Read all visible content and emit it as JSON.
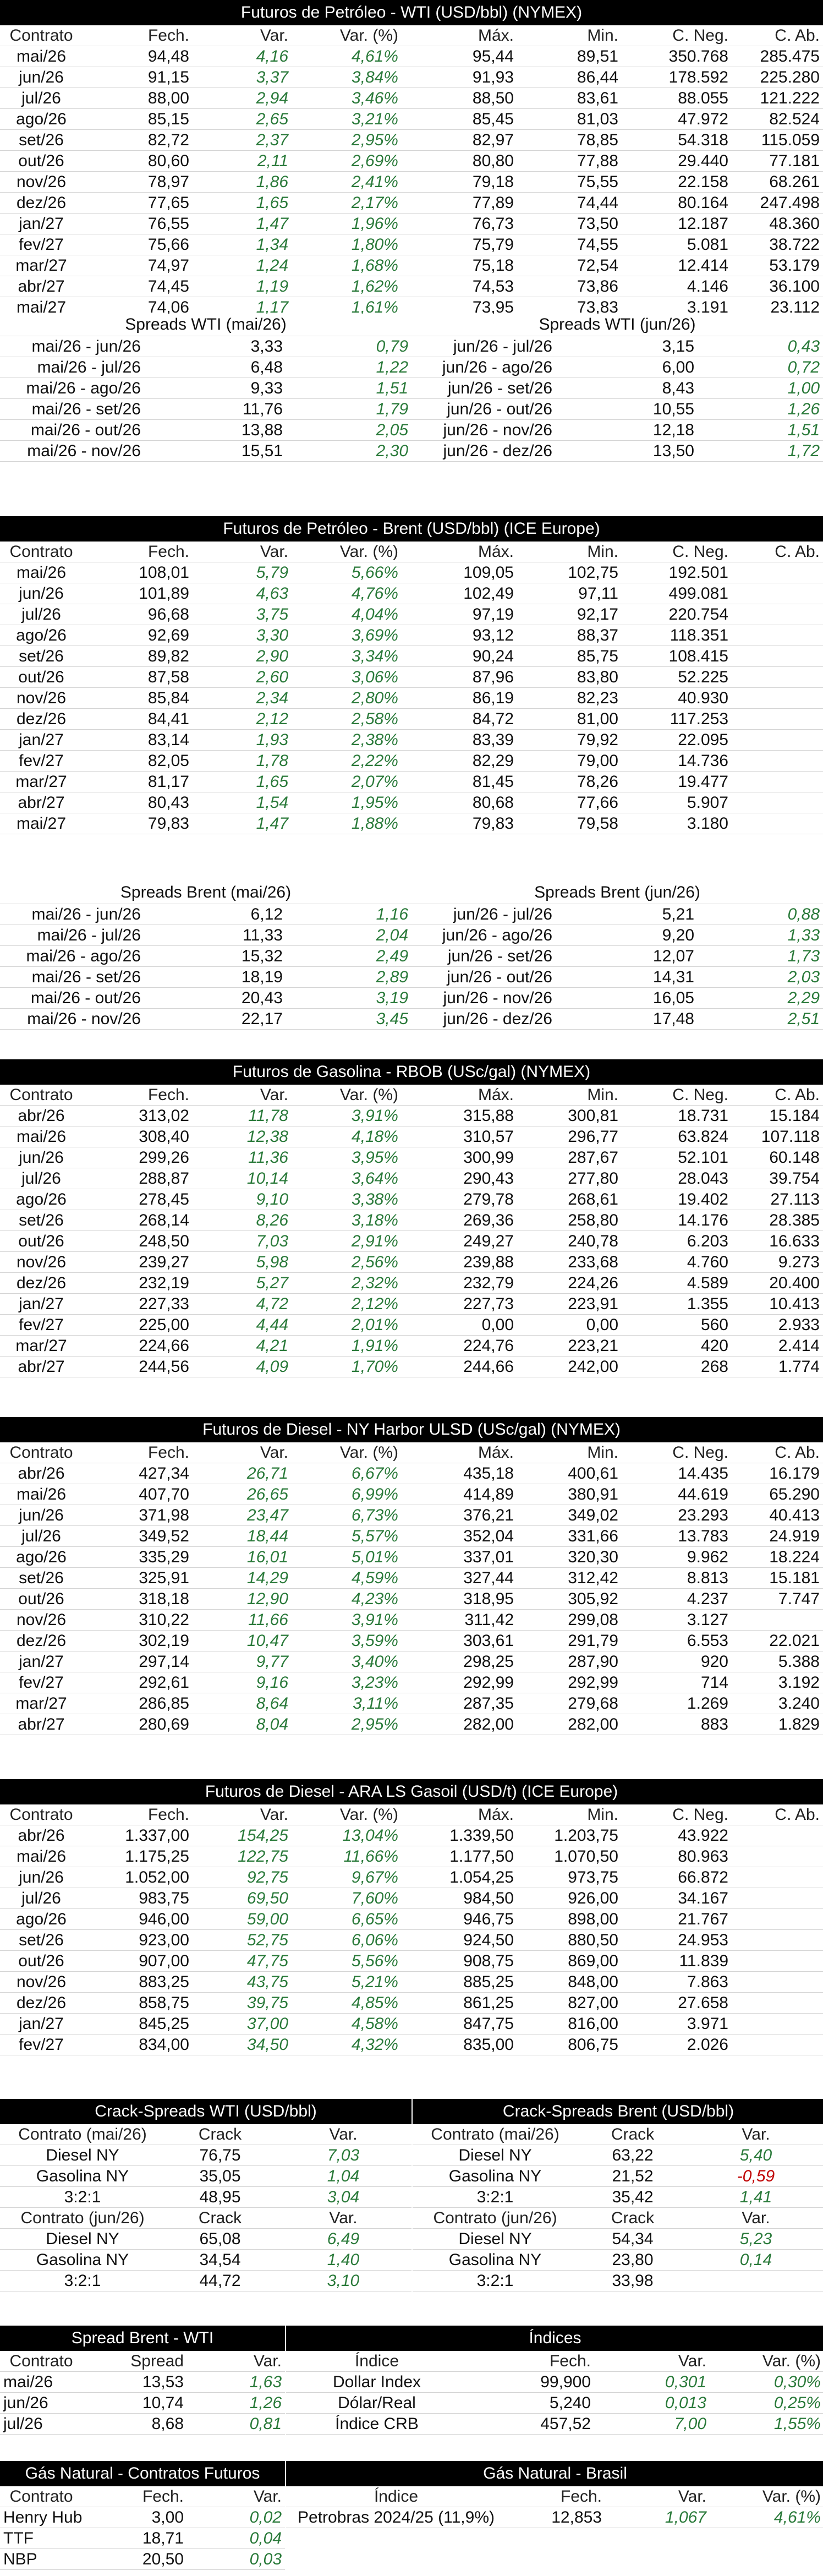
{
  "wti": {
    "title": "Futuros de Petróleo - WTI (USD/bbl) (NYMEX)",
    "headers": [
      "Contrato",
      "Fech.",
      "Var.",
      "Var. (%)",
      "Máx.",
      "Min.",
      "C. Neg.",
      "C. Ab."
    ],
    "rows": [
      [
        "mai/26",
        "94,48",
        "4,16",
        "4,61%",
        "95,44",
        "89,51",
        "350.768",
        "285.475"
      ],
      [
        "jun/26",
        "91,15",
        "3,37",
        "3,84%",
        "91,93",
        "86,44",
        "178.592",
        "225.280"
      ],
      [
        "jul/26",
        "88,00",
        "2,94",
        "3,46%",
        "88,50",
        "83,61",
        "88.055",
        "121.222"
      ],
      [
        "ago/26",
        "85,15",
        "2,65",
        "3,21%",
        "85,45",
        "81,03",
        "47.972",
        "82.524"
      ],
      [
        "set/26",
        "82,72",
        "2,37",
        "2,95%",
        "82,97",
        "78,85",
        "54.318",
        "115.059"
      ],
      [
        "out/26",
        "80,60",
        "2,11",
        "2,69%",
        "80,80",
        "77,88",
        "29.440",
        "77.181"
      ],
      [
        "nov/26",
        "78,97",
        "1,86",
        "2,41%",
        "79,18",
        "75,55",
        "22.158",
        "68.261"
      ],
      [
        "dez/26",
        "77,65",
        "1,65",
        "2,17%",
        "77,89",
        "74,44",
        "80.164",
        "247.498"
      ],
      [
        "jan/27",
        "76,55",
        "1,47",
        "1,96%",
        "76,73",
        "73,50",
        "12.187",
        "48.360"
      ],
      [
        "fev/27",
        "75,66",
        "1,34",
        "1,80%",
        "75,79",
        "74,55",
        "5.081",
        "38.722"
      ],
      [
        "mar/27",
        "74,97",
        "1,24",
        "1,68%",
        "75,18",
        "72,54",
        "12.414",
        "53.179"
      ],
      [
        "abr/27",
        "74,45",
        "1,19",
        "1,62%",
        "74,53",
        "73,86",
        "4.146",
        "36.100"
      ],
      [
        "mai/27",
        "74,06",
        "1,17",
        "1,61%",
        "73,95",
        "73,83",
        "3.191",
        "23.112"
      ]
    ]
  },
  "spreads_wti": {
    "left_title": "Spreads WTI (mai/26)",
    "right_title": "Spreads WTI (jun/26)",
    "left": [
      [
        "mai/26 - jun/26",
        "3,33",
        "0,79"
      ],
      [
        "mai/26 - jul/26",
        "6,48",
        "1,22"
      ],
      [
        "mai/26 - ago/26",
        "9,33",
        "1,51"
      ],
      [
        "mai/26 - set/26",
        "11,76",
        "1,79"
      ],
      [
        "mai/26 - out/26",
        "13,88",
        "2,05"
      ],
      [
        "mai/26 - nov/26",
        "15,51",
        "2,30"
      ]
    ],
    "right": [
      [
        "jun/26 - jul/26",
        "3,15",
        "0,43"
      ],
      [
        "jun/26 - ago/26",
        "6,00",
        "0,72"
      ],
      [
        "jun/26 - set/26",
        "8,43",
        "1,00"
      ],
      [
        "jun/26 - out/26",
        "10,55",
        "1,26"
      ],
      [
        "jun/26 - nov/26",
        "12,18",
        "1,51"
      ],
      [
        "jun/26 - dez/26",
        "13,50",
        "1,72"
      ]
    ]
  },
  "brent": {
    "title": "Futuros de Petróleo - Brent (USD/bbl) (ICE Europe)",
    "headers": [
      "Contrato",
      "Fech.",
      "Var.",
      "Var. (%)",
      "Máx.",
      "Min.",
      "C. Neg.",
      "C. Ab."
    ],
    "rows": [
      [
        "mai/26",
        "108,01",
        "5,79",
        "5,66%",
        "109,05",
        "102,75",
        "192.501",
        ""
      ],
      [
        "jun/26",
        "101,89",
        "4,63",
        "4,76%",
        "102,49",
        "97,11",
        "499.081",
        ""
      ],
      [
        "jul/26",
        "96,68",
        "3,75",
        "4,04%",
        "97,19",
        "92,17",
        "220.754",
        ""
      ],
      [
        "ago/26",
        "92,69",
        "3,30",
        "3,69%",
        "93,12",
        "88,37",
        "118.351",
        ""
      ],
      [
        "set/26",
        "89,82",
        "2,90",
        "3,34%",
        "90,24",
        "85,75",
        "108.415",
        ""
      ],
      [
        "out/26",
        "87,58",
        "2,60",
        "3,06%",
        "87,96",
        "83,80",
        "52.225",
        ""
      ],
      [
        "nov/26",
        "85,84",
        "2,34",
        "2,80%",
        "86,19",
        "82,23",
        "40.930",
        ""
      ],
      [
        "dez/26",
        "84,41",
        "2,12",
        "2,58%",
        "84,72",
        "81,00",
        "117.253",
        ""
      ],
      [
        "jan/27",
        "83,14",
        "1,93",
        "2,38%",
        "83,39",
        "79,92",
        "22.095",
        ""
      ],
      [
        "fev/27",
        "82,05",
        "1,78",
        "2,22%",
        "82,29",
        "79,00",
        "14.736",
        ""
      ],
      [
        "mar/27",
        "81,17",
        "1,65",
        "2,07%",
        "81,45",
        "78,26",
        "19.477",
        ""
      ],
      [
        "abr/27",
        "80,43",
        "1,54",
        "1,95%",
        "80,68",
        "77,66",
        "5.907",
        ""
      ],
      [
        "mai/27",
        "79,83",
        "1,47",
        "1,88%",
        "79,83",
        "79,58",
        "3.180",
        ""
      ]
    ]
  },
  "spreads_brent": {
    "left_title": "Spreads Brent (mai/26)",
    "right_title": "Spreads Brent (jun/26)",
    "left": [
      [
        "mai/26 - jun/26",
        "6,12",
        "1,16"
      ],
      [
        "mai/26 - jul/26",
        "11,33",
        "2,04"
      ],
      [
        "mai/26 - ago/26",
        "15,32",
        "2,49"
      ],
      [
        "mai/26 - set/26",
        "18,19",
        "2,89"
      ],
      [
        "mai/26 - out/26",
        "20,43",
        "3,19"
      ],
      [
        "mai/26 - nov/26",
        "22,17",
        "3,45"
      ]
    ],
    "right": [
      [
        "jun/26 - jul/26",
        "5,21",
        "0,88"
      ],
      [
        "jun/26 - ago/26",
        "9,20",
        "1,33"
      ],
      [
        "jun/26 - set/26",
        "12,07",
        "1,73"
      ],
      [
        "jun/26 - out/26",
        "14,31",
        "2,03"
      ],
      [
        "jun/26 - nov/26",
        "16,05",
        "2,29"
      ],
      [
        "jun/26 - dez/26",
        "17,48",
        "2,51"
      ]
    ]
  },
  "rbob": {
    "title": "Futuros de Gasolina - RBOB (USc/gal) (NYMEX)",
    "headers": [
      "Contrato",
      "Fech.",
      "Var.",
      "Var. (%)",
      "Máx.",
      "Min.",
      "C. Neg.",
      "C. Ab."
    ],
    "rows": [
      [
        "abr/26",
        "313,02",
        "11,78",
        "3,91%",
        "315,88",
        "300,81",
        "18.731",
        "15.184"
      ],
      [
        "mai/26",
        "308,40",
        "12,38",
        "4,18%",
        "310,57",
        "296,77",
        "63.824",
        "107.118"
      ],
      [
        "jun/26",
        "299,26",
        "11,36",
        "3,95%",
        "300,99",
        "287,67",
        "52.101",
        "60.148"
      ],
      [
        "jul/26",
        "288,87",
        "10,14",
        "3,64%",
        "290,43",
        "277,80",
        "28.043",
        "39.754"
      ],
      [
        "ago/26",
        "278,45",
        "9,10",
        "3,38%",
        "279,78",
        "268,61",
        "19.402",
        "27.113"
      ],
      [
        "set/26",
        "268,14",
        "8,26",
        "3,18%",
        "269,36",
        "258,80",
        "14.176",
        "28.385"
      ],
      [
        "out/26",
        "248,50",
        "7,03",
        "2,91%",
        "249,27",
        "240,78",
        "6.203",
        "16.633"
      ],
      [
        "nov/26",
        "239,27",
        "5,98",
        "2,56%",
        "239,88",
        "233,68",
        "4.760",
        "9.273"
      ],
      [
        "dez/26",
        "232,19",
        "5,27",
        "2,32%",
        "232,79",
        "224,26",
        "4.589",
        "20.400"
      ],
      [
        "jan/27",
        "227,33",
        "4,72",
        "2,12%",
        "227,73",
        "223,91",
        "1.355",
        "10.413"
      ],
      [
        "fev/27",
        "225,00",
        "4,44",
        "2,01%",
        "0,00",
        "0,00",
        "560",
        "2.933"
      ],
      [
        "mar/27",
        "224,66",
        "4,21",
        "1,91%",
        "224,76",
        "223,21",
        "420",
        "2.414"
      ],
      [
        "abr/27",
        "244,56",
        "4,09",
        "1,70%",
        "244,66",
        "242,00",
        "268",
        "1.774"
      ]
    ]
  },
  "ulsd": {
    "title": "Futuros de Diesel - NY Harbor ULSD (USc/gal) (NYMEX)",
    "headers": [
      "Contrato",
      "Fech.",
      "Var.",
      "Var. (%)",
      "Máx.",
      "Min.",
      "C. Neg.",
      "C. Ab."
    ],
    "rows": [
      [
        "abr/26",
        "427,34",
        "26,71",
        "6,67%",
        "435,18",
        "400,61",
        "14.435",
        "16.179"
      ],
      [
        "mai/26",
        "407,70",
        "26,65",
        "6,99%",
        "414,89",
        "380,91",
        "44.619",
        "65.290"
      ],
      [
        "jun/26",
        "371,98",
        "23,47",
        "6,73%",
        "376,21",
        "349,02",
        "23.293",
        "40.413"
      ],
      [
        "jul/26",
        "349,52",
        "18,44",
        "5,57%",
        "352,04",
        "331,66",
        "13.783",
        "24.919"
      ],
      [
        "ago/26",
        "335,29",
        "16,01",
        "5,01%",
        "337,01",
        "320,30",
        "9.962",
        "18.224"
      ],
      [
        "set/26",
        "325,91",
        "14,29",
        "4,59%",
        "327,44",
        "312,42",
        "8.813",
        "15.181"
      ],
      [
        "out/26",
        "318,18",
        "12,90",
        "4,23%",
        "318,95",
        "305,92",
        "4.237",
        "7.747"
      ],
      [
        "nov/26",
        "310,22",
        "11,66",
        "3,91%",
        "311,42",
        "299,08",
        "3.127",
        ""
      ],
      [
        "dez/26",
        "302,19",
        "10,47",
        "3,59%",
        "303,61",
        "291,79",
        "6.553",
        "22.021"
      ],
      [
        "jan/27",
        "297,14",
        "9,77",
        "3,40%",
        "298,25",
        "287,90",
        "920",
        "5.388"
      ],
      [
        "fev/27",
        "292,61",
        "9,16",
        "3,23%",
        "292,99",
        "292,99",
        "714",
        "3.192"
      ],
      [
        "mar/27",
        "286,85",
        "8,64",
        "3,11%",
        "287,35",
        "279,68",
        "1.269",
        "3.240"
      ],
      [
        "abr/27",
        "280,69",
        "8,04",
        "2,95%",
        "282,00",
        "282,00",
        "883",
        "1.829"
      ]
    ]
  },
  "gasoil": {
    "title": "Futuros de Diesel - ARA LS Gasoil (USD/t) (ICE Europe)",
    "headers": [
      "Contrato",
      "Fech.",
      "Var.",
      "Var. (%)",
      "Máx.",
      "Min.",
      "C. Neg.",
      "C. Ab."
    ],
    "rows": [
      [
        "abr/26",
        "1.337,00",
        "154,25",
        "13,04%",
        "1.339,50",
        "1.203,75",
        "43.922",
        ""
      ],
      [
        "mai/26",
        "1.175,25",
        "122,75",
        "11,66%",
        "1.177,50",
        "1.070,50",
        "80.963",
        ""
      ],
      [
        "jun/26",
        "1.052,00",
        "92,75",
        "9,67%",
        "1.054,25",
        "973,75",
        "66.872",
        ""
      ],
      [
        "jul/26",
        "983,75",
        "69,50",
        "7,60%",
        "984,50",
        "926,00",
        "34.167",
        ""
      ],
      [
        "ago/26",
        "946,00",
        "59,00",
        "6,65%",
        "946,75",
        "898,00",
        "21.767",
        ""
      ],
      [
        "set/26",
        "923,00",
        "52,75",
        "6,06%",
        "924,50",
        "880,50",
        "24.953",
        ""
      ],
      [
        "out/26",
        "907,00",
        "47,75",
        "5,56%",
        "908,75",
        "869,00",
        "11.839",
        ""
      ],
      [
        "nov/26",
        "883,25",
        "43,75",
        "5,21%",
        "885,25",
        "848,00",
        "7.863",
        ""
      ],
      [
        "dez/26",
        "858,75",
        "39,75",
        "4,85%",
        "861,25",
        "827,00",
        "27.658",
        ""
      ],
      [
        "jan/27",
        "845,25",
        "37,00",
        "4,58%",
        "847,75",
        "816,00",
        "3.971",
        ""
      ],
      [
        "fev/27",
        "834,00",
        "34,50",
        "4,32%",
        "835,00",
        "806,75",
        "2.026",
        ""
      ]
    ]
  },
  "crack_wti": {
    "title": "Crack-Spreads WTI (USD/bbl)",
    "blocks": [
      {
        "headers": [
          "Contrato (mai/26)",
          "Crack",
          "Var."
        ],
        "rows": [
          [
            "Diesel NY",
            "76,75",
            "7,03"
          ],
          [
            "Gasolina NY",
            "35,05",
            "1,04"
          ],
          [
            "3:2:1",
            "48,95",
            "3,04"
          ]
        ]
      },
      {
        "headers": [
          "Contrato (jun/26)",
          "Crack",
          "Var."
        ],
        "rows": [
          [
            "Diesel NY",
            "65,08",
            "6,49"
          ],
          [
            "Gasolina NY",
            "34,54",
            "1,40"
          ],
          [
            "3:2:1",
            "44,72",
            "3,10"
          ]
        ]
      }
    ]
  },
  "crack_brent": {
    "title": "Crack-Spreads Brent (USD/bbl)",
    "blocks": [
      {
        "headers": [
          "Contrato (mai/26)",
          "Crack",
          "Var."
        ],
        "rows": [
          [
            "Diesel NY",
            "63,22",
            "5,40"
          ],
          [
            "Gasolina NY",
            "21,52",
            "-0,59"
          ],
          [
            "3:2:1",
            "35,42",
            "1,41"
          ]
        ]
      },
      {
        "headers": [
          "Contrato (jun/26)",
          "Crack",
          "Var."
        ],
        "rows": [
          [
            "Diesel NY",
            "54,34",
            "5,23"
          ],
          [
            "Gasolina NY",
            "23,80",
            "0,14"
          ],
          [
            "3:2:1",
            "33,98",
            ""
          ]
        ]
      }
    ]
  },
  "spread_bw": {
    "title": "Spread Brent - WTI",
    "headers": [
      "Contrato",
      "Spread",
      "Var."
    ],
    "rows": [
      [
        "mai/26",
        "13,53",
        "1,63"
      ],
      [
        "jun/26",
        "10,74",
        "1,26"
      ],
      [
        "jul/26",
        "8,68",
        "0,81"
      ]
    ]
  },
  "indices": {
    "title": "Índices",
    "headers": [
      "Índice",
      "Fech.",
      "Var.",
      "Var. (%)"
    ],
    "rows": [
      [
        "Dollar Index",
        "99,900",
        "0,301",
        "0,30%"
      ],
      [
        "Dólar/Real",
        "5,240",
        "0,013",
        "0,25%"
      ],
      [
        "Índice CRB",
        "457,52",
        "7,00",
        "1,55%"
      ]
    ]
  },
  "gas_fut": {
    "title": "Gás Natural - Contratos Futuros",
    "headers": [
      "Contrato",
      "Fech.",
      "Var."
    ],
    "rows": [
      [
        "Henry Hub",
        "3,00",
        "0,02"
      ],
      [
        "TTF",
        "18,71",
        "0,04"
      ],
      [
        "NBP",
        "20,50",
        "0,03"
      ]
    ]
  },
  "gas_br": {
    "title": "Gás Natural - Brasil",
    "headers": [
      "Índice",
      "Fech.",
      "Var.",
      "Var. (%)"
    ],
    "rows": [
      [
        "Petrobras 2024/25 (11,9%)",
        "12,853",
        "1,067",
        "4,61%"
      ]
    ]
  }
}
